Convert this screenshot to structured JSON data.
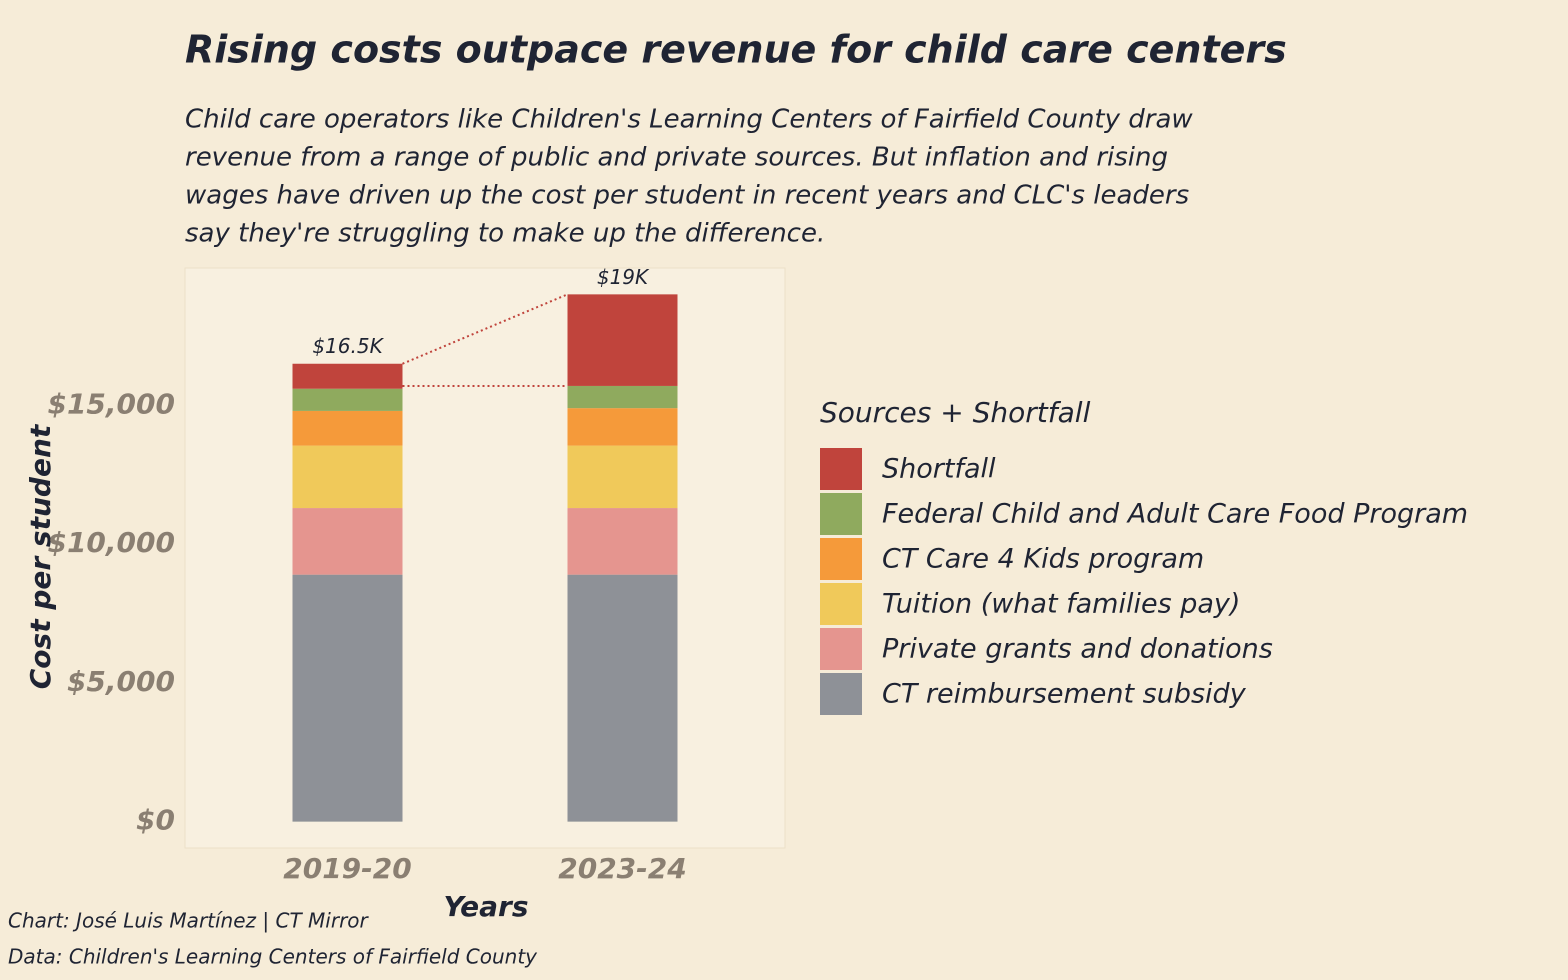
{
  "chart_data": {
    "type": "stacked-bar",
    "title": "Rising costs outpace revenue for child care centers",
    "subtitle_lines": [
      "Child care operators like Children's Learning Centers of Fairfield County draw",
      "revenue from a range of public and private sources. But inflation and rising",
      "wages have driven up the cost per student in recent years and CLC's leaders",
      "say they're struggling to make up the difference."
    ],
    "x_label": "Years",
    "y_label": "Cost per student",
    "legend_title": "Sources + Shortfall",
    "categories": [
      "2019-20",
      "2023-24"
    ],
    "series": [
      {
        "name": "CT reimbursement subsidy",
        "color": "#8e9197",
        "values": [
          8900,
          8900
        ]
      },
      {
        "name": "Private grants and donations",
        "color": "#e5958f",
        "values": [
          2400,
          2400
        ]
      },
      {
        "name": "Tuition (what families pay)",
        "color": "#f0c95a",
        "values": [
          2250,
          2250
        ]
      },
      {
        "name": "CT Care 4 Kids program",
        "color": "#f59a3a",
        "values": [
          1250,
          1350
        ]
      },
      {
        "name": "Federal Child and Adult Care Food Program",
        "color": "#8faa5e",
        "values": [
          800,
          800
        ]
      },
      {
        "name": "Shortfall",
        "color": "#c0443c",
        "values": [
          900,
          3300
        ]
      }
    ],
    "totals": [
      16500,
      19000
    ],
    "total_labels": [
      "$16.5K",
      "$19K"
    ],
    "ylim": [
      -950,
      19950
    ],
    "yticks": [
      {
        "value": 0,
        "label": "$0"
      },
      {
        "value": 5000,
        "label": "$5,000"
      },
      {
        "value": 10000,
        "label": "$10,000"
      },
      {
        "value": 15000,
        "label": "$15,000"
      }
    ],
    "legend_position": "right",
    "captions": [
      "Chart: José Luis Martínez | CT Mirror",
      "Data: Children's Learning Centers of Fairfield County"
    ]
  }
}
